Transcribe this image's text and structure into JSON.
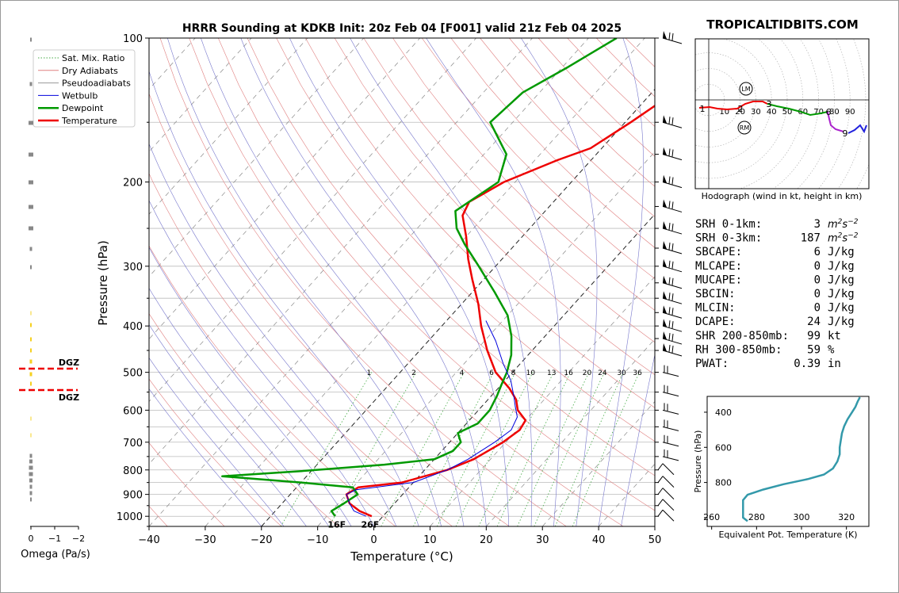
{
  "header": {
    "title": "HRRR Sounding at KDKB Init: 20z Feb 04 [F001] valid 21z Feb 04 2025",
    "brand": "TROPICALTIDBITS.COM"
  },
  "chart_data": [
    {
      "type": "line",
      "name": "skew-t",
      "xlabel": "Temperature (°C)",
      "ylabel": "Pressure (hPa)",
      "xlim": [
        -40,
        50
      ],
      "ylim": [
        1050,
        100
      ],
      "y_scale": "log",
      "x_ticks": [
        "−40",
        "−30",
        "−20",
        "−10",
        "0",
        "10",
        "20",
        "30",
        "40",
        "50"
      ],
      "y_ticks": [
        "100",
        "200",
        "300",
        "400",
        "500",
        "600",
        "700",
        "800",
        "900",
        "1000"
      ],
      "legend": [
        "Sat. Mix. Ratio",
        "Dry Adiabats",
        "Pseudoadiabats",
        "Wetbulb",
        "Dewpoint",
        "Temperature"
      ],
      "legend_position": "upper-left",
      "mixing_ratio_labels": [
        "1",
        "2",
        "4",
        "6",
        "8",
        "10",
        "13",
        "16",
        "20",
        "24",
        "30",
        "36"
      ],
      "surface_labels": {
        "dewpoint": "16F",
        "temperature": "26F"
      },
      "series": [
        {
          "name": "Temperature",
          "color": "#ee0000",
          "points": [
            [
              -2,
              1000
            ],
            [
              -5,
              975
            ],
            [
              -8,
              940
            ],
            [
              -10,
              900
            ],
            [
              -9,
              870
            ],
            [
              -2,
              850
            ],
            [
              4,
              800
            ],
            [
              7,
              760
            ],
            [
              9.5,
              700
            ],
            [
              10.5,
              660
            ],
            [
              10,
              630
            ],
            [
              7,
              600
            ],
            [
              5,
              570
            ],
            [
              2,
              540
            ],
            [
              -3,
              500
            ],
            [
              -8,
              450
            ],
            [
              -13,
              400
            ],
            [
              -17,
              360
            ],
            [
              -22,
              320
            ],
            [
              -26,
              290
            ],
            [
              -30,
              260
            ],
            [
              -34,
              235
            ],
            [
              -35,
              220
            ],
            [
              -32,
              200
            ],
            [
              -26,
              180
            ],
            [
              -22,
              170
            ],
            [
              -19,
              150
            ],
            [
              -16,
              130
            ],
            [
              -15,
              110
            ],
            [
              -10,
              100
            ]
          ]
        },
        {
          "name": "Dewpoint",
          "color": "#009900",
          "points": [
            [
              -8.5,
              1000
            ],
            [
              -10,
              975
            ],
            [
              -9,
              940
            ],
            [
              -8,
              900
            ],
            [
              -10,
              870
            ],
            [
              -20,
              850
            ],
            [
              -35,
              825
            ],
            [
              -22,
              805
            ],
            [
              -8,
              780
            ],
            [
              0,
              760
            ],
            [
              2,
              730
            ],
            [
              2,
              700
            ],
            [
              0,
              670
            ],
            [
              2,
              640
            ],
            [
              2,
              600
            ],
            [
              1,
              560
            ],
            [
              0,
              530
            ],
            [
              -1,
              500
            ],
            [
              -3,
              460
            ],
            [
              -6,
              420
            ],
            [
              -10,
              380
            ],
            [
              -16,
              340
            ],
            [
              -23,
              300
            ],
            [
              -29,
              270
            ],
            [
              -33,
              250
            ],
            [
              -36,
              230
            ],
            [
              -33,
              200
            ],
            [
              -36,
              175
            ],
            [
              -44,
              150
            ],
            [
              -43,
              130
            ],
            [
              -39,
              115
            ],
            [
              -35,
              100
            ]
          ]
        },
        {
          "name": "Wetbulb",
          "color": "#0000dd",
          "points": [
            [
              -3,
              1000
            ],
            [
              -6,
              975
            ],
            [
              -8,
              940
            ],
            [
              -10,
              900
            ],
            [
              -9,
              880
            ],
            [
              0,
              850
            ],
            [
              4,
              800
            ],
            [
              6,
              760
            ],
            [
              8,
              700
            ],
            [
              9,
              660
            ],
            [
              8,
              620
            ],
            [
              6,
              590
            ],
            [
              4,
              560
            ],
            [
              1,
              520
            ],
            [
              -3,
              480
            ],
            [
              -8,
              430
            ],
            [
              -13,
              390
            ]
          ]
        }
      ]
    },
    {
      "type": "line",
      "name": "omega",
      "xlabel": "Omega (Pa/s)",
      "x_ticks": [
        "0",
        "−1",
        "−2"
      ],
      "dgz_label": "DGZ"
    },
    {
      "type": "line",
      "name": "hodograph",
      "caption": "Hodograph (wind in kt, height in km)",
      "ring_labels": [
        "10",
        "20",
        "30",
        "40",
        "50",
        "60",
        "70",
        "80",
        "90"
      ],
      "height_labels": [
        "1",
        "2",
        "3",
        "6",
        "9"
      ],
      "storm_motion_labels": [
        "LM",
        "RM"
      ]
    },
    {
      "type": "line",
      "name": "theta-e",
      "xlabel": "Equivalent Pot. Temperature (K)",
      "ylabel": "Pressure (hPa)",
      "x_ticks": [
        "260",
        "280",
        "300",
        "320"
      ],
      "y_ticks": [
        "400",
        "600",
        "800",
        "1000"
      ],
      "xlim": [
        258,
        330
      ],
      "ylim": [
        1050,
        310
      ],
      "color": "#3399aa",
      "points": [
        [
          276,
          1020
        ],
        [
          274,
          1000
        ],
        [
          274,
          950
        ],
        [
          274,
          900
        ],
        [
          276,
          870
        ],
        [
          283,
          840
        ],
        [
          292,
          810
        ],
        [
          303,
          780
        ],
        [
          310,
          755
        ],
        [
          314,
          720
        ],
        [
          316,
          680
        ],
        [
          317,
          640
        ],
        [
          317,
          600
        ],
        [
          317.5,
          560
        ],
        [
          318,
          520
        ],
        [
          319,
          480
        ],
        [
          320.5,
          440
        ],
        [
          322.5,
          400
        ],
        [
          324,
          370
        ],
        [
          325,
          340
        ],
        [
          326,
          315
        ]
      ]
    }
  ],
  "indices": [
    {
      "label": "SRH 0-1km:",
      "value": "3",
      "unit": "m2s-2",
      "color": "#000000"
    },
    {
      "label": "SRH 0-3km:",
      "value": "187",
      "unit": "m2s-2",
      "color": "#000000"
    },
    {
      "label": "SBCAPE:",
      "value": "6",
      "unit": "J/kg",
      "color": "#ee2222"
    },
    {
      "label": "MLCAPE:",
      "value": "0",
      "unit": "J/kg",
      "color": "#000000"
    },
    {
      "label": "MUCAPE:",
      "value": "0",
      "unit": "J/kg",
      "color": "#000000"
    },
    {
      "label": "SBCIN:",
      "value": "0",
      "unit": "J/kg",
      "color": "#000000"
    },
    {
      "label": "MLCIN:",
      "value": "0",
      "unit": "J/kg",
      "color": "#000000"
    },
    {
      "label": "DCAPE:",
      "value": "24",
      "unit": "J/kg",
      "color": "#2222cc"
    },
    {
      "label": "SHR 200-850mb:",
      "value": "99",
      "unit": "kt",
      "color": "#aa2222"
    },
    {
      "label": "RH 300-850mb:",
      "value": "59",
      "unit": "%",
      "color": "#000000"
    },
    {
      "label": "PWAT:",
      "value": "0.39",
      "unit": "in",
      "color": "#000000"
    }
  ]
}
